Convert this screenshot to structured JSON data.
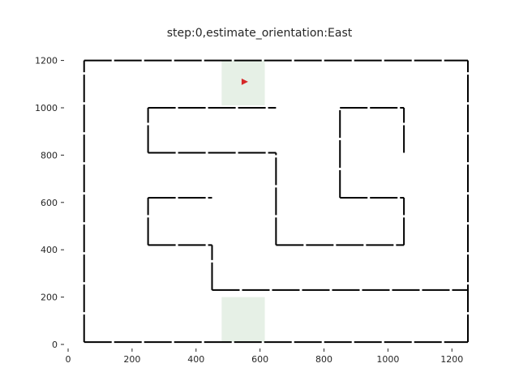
{
  "title": "step:0,estimate_orientation:East",
  "chart_data": {
    "type": "line",
    "title": "step:0,estimate_orientation:East",
    "xlabel": "",
    "ylabel": "",
    "xlim": [
      0,
      1250
    ],
    "ylim": [
      0,
      1250
    ],
    "xticks": [
      0,
      200,
      400,
      600,
      800,
      1000,
      1200
    ],
    "yticks": [
      0,
      200,
      400,
      600,
      800,
      1000,
      1200
    ],
    "grid": false,
    "colors": {
      "walls": "#000000",
      "agent": "#d62728",
      "highlight": "#e6f0e6"
    },
    "highlight_regions": [
      {
        "x": [
          480,
          615
        ],
        "y": [
          1010,
          1200
        ]
      },
      {
        "x": [
          480,
          615
        ],
        "y": [
          10,
          200
        ]
      }
    ],
    "agent": {
      "x": 550,
      "y": 1110,
      "orientation": "East"
    },
    "walls": [
      [
        [
          50,
          1200
        ],
        [
          1250,
          1200
        ]
      ],
      [
        [
          50,
          10
        ],
        [
          1250,
          10
        ]
      ],
      [
        [
          50,
          10
        ],
        [
          50,
          1200
        ]
      ],
      [
        [
          1250,
          10
        ],
        [
          1250,
          1200
        ]
      ],
      [
        [
          250,
          1000
        ],
        [
          650,
          1000
        ]
      ],
      [
        [
          250,
          810
        ],
        [
          250,
          1000
        ]
      ],
      [
        [
          250,
          810
        ],
        [
          650,
          810
        ]
      ],
      [
        [
          650,
          420
        ],
        [
          650,
          810
        ]
      ],
      [
        [
          650,
          420
        ],
        [
          1050,
          420
        ]
      ],
      [
        [
          1050,
          420
        ],
        [
          1050,
          620
        ]
      ],
      [
        [
          850,
          620
        ],
        [
          1050,
          620
        ]
      ],
      [
        [
          850,
          620
        ],
        [
          850,
          1000
        ]
      ],
      [
        [
          850,
          1000
        ],
        [
          1050,
          1000
        ]
      ],
      [
        [
          1050,
          810
        ],
        [
          1050,
          1000
        ]
      ],
      [
        [
          250,
          620
        ],
        [
          450,
          620
        ]
      ],
      [
        [
          250,
          420
        ],
        [
          250,
          620
        ]
      ],
      [
        [
          250,
          420
        ],
        [
          450,
          420
        ]
      ],
      [
        [
          450,
          230
        ],
        [
          450,
          420
        ]
      ],
      [
        [
          450,
          230
        ],
        [
          1250,
          230
        ]
      ]
    ]
  }
}
